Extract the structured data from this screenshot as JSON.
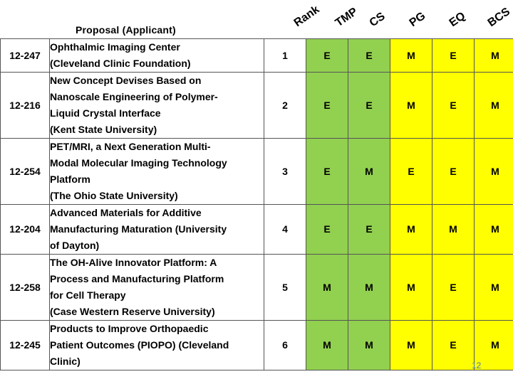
{
  "header": {
    "proposal_label": "Proposal (Applicant)",
    "columns": [
      "Rank",
      "TMP",
      "CS",
      "PG",
      "EQ",
      "BCS"
    ]
  },
  "rows": [
    {
      "id": "12-247",
      "lines": [
        "Ophthalmic Imaging Center",
        "(Cleveland Clinic Foundation)"
      ],
      "rank": "1",
      "scores": [
        "E",
        "E",
        "M",
        "E",
        "M"
      ]
    },
    {
      "id": "12-216",
      "lines": [
        "New Concept Devises Based on",
        "Nanoscale Engineering of Polymer-",
        "Liquid Crystal Interface",
        "(Kent State University)"
      ],
      "rank": "2",
      "scores": [
        "E",
        "E",
        "M",
        "E",
        "M"
      ]
    },
    {
      "id": "12-254",
      "lines": [
        "PET/MRI, a Next Generation Multi-",
        "Modal Molecular Imaging Technology",
        "Platform",
        "(The Ohio State University)"
      ],
      "rank": "3",
      "scores": [
        "E",
        "M",
        "E",
        "E",
        "M"
      ]
    },
    {
      "id": "12-204",
      "lines": [
        "Advanced Materials for Additive",
        "Manufacturing Maturation (University",
        "of Dayton)"
      ],
      "rank": "4",
      "scores": [
        "E",
        "E",
        "M",
        "M",
        "M"
      ]
    },
    {
      "id": "12-258",
      "lines": [
        "The OH-Alive Innovator Platform: A",
        "Process and Manufacturing Platform",
        "for Cell Therapy",
        "(Case Western Reserve University)"
      ],
      "rank": "5",
      "scores": [
        "M",
        "M",
        "M",
        "E",
        "M"
      ]
    },
    {
      "id": "12-245",
      "lines": [
        "Products to Improve Orthopaedic",
        "Patient Outcomes (PIOPO) (Cleveland",
        "Clinic)"
      ],
      "rank": "6",
      "scores": [
        "M",
        "M",
        "M",
        "E",
        "M"
      ]
    }
  ],
  "footer": {
    "slide_number": "12"
  }
}
